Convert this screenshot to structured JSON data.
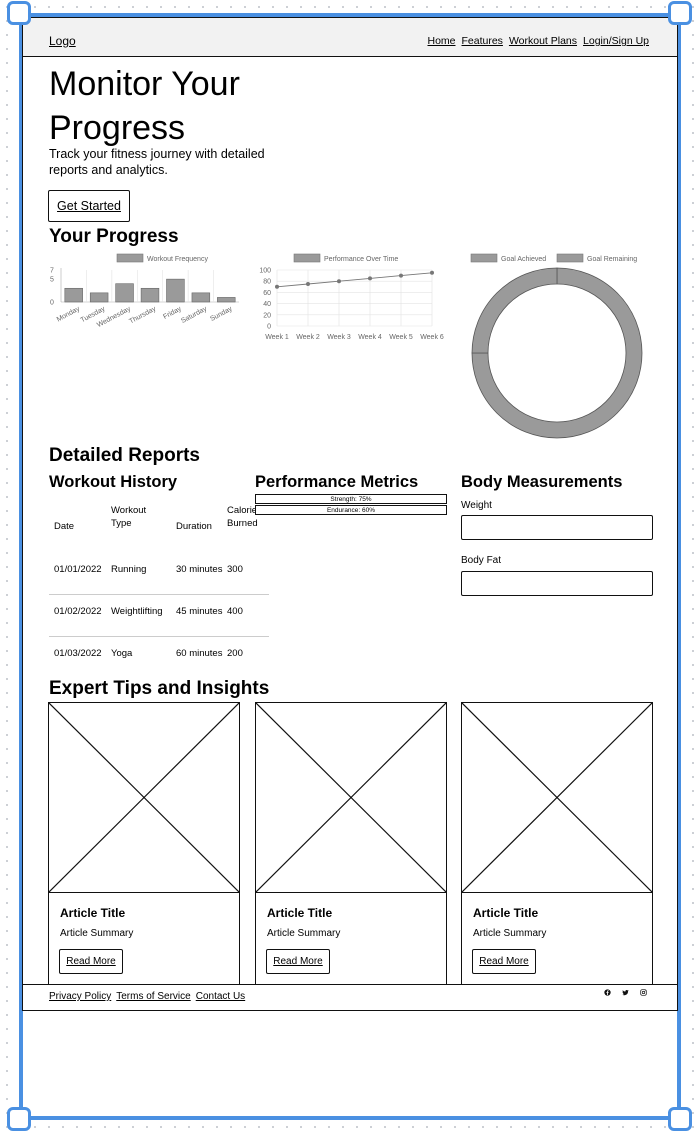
{
  "nav": {
    "logo": "Logo",
    "links": [
      "Home",
      "Features",
      "Workout Plans",
      "Login/Sign Up"
    ]
  },
  "hero": {
    "title": "Monitor Your Progress",
    "subtitle": "Track your fitness journey with detailed reports and analytics.",
    "cta": "Get Started"
  },
  "progress": {
    "heading": "Your Progress"
  },
  "chart_data": [
    {
      "type": "bar",
      "legend": [
        "Workout Frequency"
      ],
      "categories": [
        "Monday",
        "Tuesday",
        "Wednesday",
        "Thursday",
        "Friday",
        "Saturday",
        "Sunday"
      ],
      "series": [
        {
          "name": "Workout Frequency",
          "values": [
            3,
            2,
            4,
            3,
            5,
            2,
            1
          ]
        }
      ],
      "yticks": [
        "7",
        "5",
        "0"
      ],
      "ylim": [
        0,
        7
      ],
      "colors": {
        "bar": "#9a9a9a"
      }
    },
    {
      "type": "line",
      "legend": [
        "Performance Over Time"
      ],
      "categories": [
        "Week 1",
        "Week 2",
        "Week 3",
        "Week 4",
        "Week 5",
        "Week 6"
      ],
      "series": [
        {
          "name": "Performance Over Time",
          "values": [
            70,
            75,
            80,
            85,
            90,
            95
          ]
        }
      ],
      "yticks": [
        "100",
        "80",
        "60",
        "40",
        "20",
        "0"
      ],
      "ylim": [
        0,
        100
      ],
      "grid": true,
      "colors": {
        "line": "#777777"
      }
    },
    {
      "type": "pie",
      "legend": [
        "Goal Achieved",
        "Goal Remaining"
      ],
      "series": [
        {
          "name": "Goals",
          "values": [
            75,
            25
          ]
        }
      ],
      "colors": {
        "slice": "#9a9a9a"
      }
    }
  ],
  "reports": {
    "heading": "Detailed Reports",
    "workout_history": {
      "title": "Workout History",
      "headers": [
        "Date",
        "Workout Type",
        "Duration",
        "Calories Burned"
      ],
      "rows": [
        [
          "01/01/2022",
          "Running",
          "30 minutes",
          "300"
        ],
        [
          "01/02/2022",
          "Weightlifting",
          "45 minutes",
          "400"
        ],
        [
          "01/03/2022",
          "Yoga",
          "60 minutes",
          "200"
        ]
      ]
    },
    "performance_metrics": {
      "title": "Performance Metrics",
      "bars": [
        {
          "label": "Strength: 75%",
          "value": 0.75
        },
        {
          "label": "Endurance: 60%",
          "value": 0.6
        }
      ]
    },
    "body_measurements": {
      "title": "Body Measurements",
      "weight_label": "Weight",
      "bodyfat_label": "Body Fat"
    }
  },
  "tips": {
    "heading": "Expert Tips and Insights",
    "articles": [
      {
        "title": "Article Title",
        "summary": "Article Summary",
        "button": "Read More"
      },
      {
        "title": "Article Title",
        "summary": "Article Summary",
        "button": "Read More"
      },
      {
        "title": "Article Title",
        "summary": "Article Summary",
        "button": "Read More"
      }
    ]
  },
  "footer": {
    "links": [
      "Privacy Policy",
      "Terms of Service",
      "Contact Us"
    ],
    "social_icons": [
      "facebook-icon",
      "twitter-icon",
      "instagram-icon"
    ]
  },
  "colors": {
    "selection": "#4a90e2",
    "border": "#111111",
    "navbar_bg": "#f2f2f2"
  }
}
